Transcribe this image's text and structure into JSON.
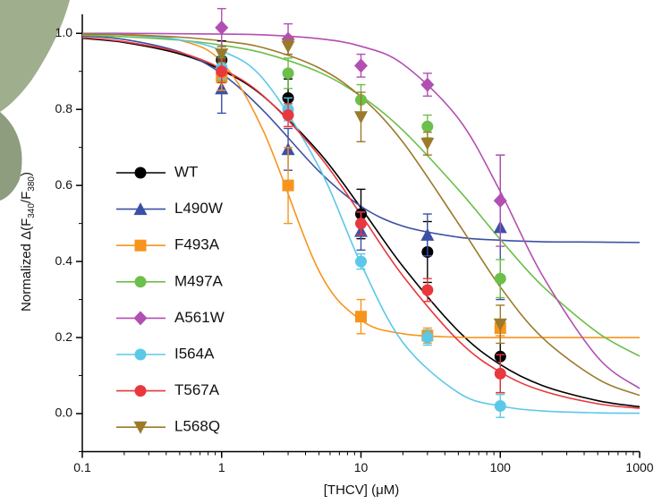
{
  "chart_data": {
    "type": "scatter",
    "xlabel": "[THCV] (μM)",
    "ylabel": [
      "Normalized Δ(F",
      "340",
      "/F",
      "380",
      ")"
    ],
    "xlog": true,
    "xlim": [
      0.1,
      1000
    ],
    "ylim": [
      -0.1,
      1.05
    ],
    "xticks": [
      0.1,
      1,
      10,
      100,
      1000
    ],
    "x_minor_ticks": [
      0.2,
      0.3,
      0.4,
      0.5,
      0.6,
      0.7,
      0.8,
      0.9,
      2,
      3,
      4,
      5,
      6,
      7,
      8,
      9,
      20,
      30,
      40,
      50,
      60,
      70,
      80,
      90,
      200,
      300,
      400,
      500,
      600,
      700,
      800,
      900
    ],
    "yticks": [
      {
        "value": 0,
        "label": "0.0"
      },
      0.2,
      0.4,
      0.6,
      0.8,
      {
        "value": 1,
        "label": "1.0"
      }
    ],
    "y_minor_ticks": [
      -0.1,
      0.1,
      0.3,
      0.5,
      0.7,
      0.9
    ],
    "legend": "left",
    "x": [
      1,
      3,
      10,
      30,
      100
    ],
    "fit_x": [
      0.1,
      0.2,
      0.5,
      1,
      2,
      5,
      10,
      20,
      50,
      100,
      200,
      500,
      1000
    ],
    "series": [
      {
        "name": "WT",
        "color": "#000000",
        "marker": "circle",
        "values": [
          0.93,
          0.83,
          0.525,
          0.425,
          0.15
        ],
        "errors": [
          0.05,
          0.05,
          0.065,
          0.08,
          0.095
        ],
        "fit": [
          0.987,
          0.976,
          0.946,
          0.903,
          0.834,
          0.687,
          0.541,
          0.387,
          0.217,
          0.129,
          0.074,
          0.034,
          0.018
        ]
      },
      {
        "name": "L490W",
        "color": "#3b50a5",
        "marker": "triangle-up",
        "values": [
          0.855,
          0.695,
          0.48,
          0.47,
          0.49
        ],
        "errors": [
          0.065,
          0.055,
          0.05,
          0.055,
          0.19
        ],
        "fit": [
          0.993,
          0.984,
          0.951,
          0.894,
          0.796,
          0.637,
          0.545,
          0.493,
          0.464,
          0.456,
          0.452,
          0.451,
          0.45
        ]
      },
      {
        "name": "F493A",
        "color": "#f7941d",
        "marker": "square",
        "values": [
          0.885,
          0.6,
          0.255,
          0.205,
          0.225
        ],
        "errors": [
          0.035,
          0.1,
          0.045,
          0.02,
          0.02
        ],
        "fit": [
          1.0,
          0.998,
          0.982,
          0.925,
          0.742,
          0.375,
          0.246,
          0.21,
          0.201,
          0.2,
          0.2,
          0.2,
          0.2
        ]
      },
      {
        "name": "M497A",
        "color": "#6cbf4a",
        "marker": "circle",
        "values": [
          0.905,
          0.895,
          0.825,
          0.755,
          0.355
        ],
        "errors": [
          0.03,
          0.04,
          0.04,
          0.03,
          0.05
        ],
        "fit": [
          0.995,
          0.991,
          0.982,
          0.969,
          0.948,
          0.898,
          0.835,
          0.745,
          0.589,
          0.458,
          0.336,
          0.213,
          0.151
        ]
      },
      {
        "name": "A561W",
        "color": "#b24fb2",
        "marker": "diamond",
        "values": [
          1.015,
          0.985,
          0.915,
          0.865,
          0.56
        ],
        "errors": [
          0.05,
          0.04,
          0.03,
          0.03,
          0.12
        ],
        "fit": [
          1.0,
          1.0,
          0.999,
          0.998,
          0.996,
          0.986,
          0.966,
          0.919,
          0.776,
          0.584,
          0.364,
          0.148,
          0.066
        ]
      },
      {
        "name": "I564A",
        "color": "#5bc8e8",
        "marker": "circle",
        "values": [
          0.91,
          0.8,
          0.4,
          0.2,
          0.02
        ],
        "errors": [
          0.03,
          0.03,
          0.02,
          0.02,
          0.03
        ],
        "fit": [
          0.998,
          0.996,
          0.983,
          0.954,
          0.879,
          0.648,
          0.394,
          0.187,
          0.055,
          0.02,
          0.007,
          0.002,
          0.001
        ]
      },
      {
        "name": "T567A",
        "color": "#e8383d",
        "marker": "circle",
        "values": [
          0.9,
          0.785,
          0.5,
          0.325,
          0.105
        ],
        "errors": [
          0.03,
          0.03,
          0.03,
          0.03,
          0.05
        ],
        "fit": [
          0.989,
          0.978,
          0.95,
          0.907,
          0.835,
          0.679,
          0.523,
          0.362,
          0.192,
          0.109,
          0.06,
          0.026,
          0.014
        ]
      },
      {
        "name": "L568Q",
        "color": "#9b7a2a",
        "marker": "triangle-down",
        "values": [
          0.945,
          0.965,
          0.78,
          0.71,
          0.235
        ],
        "errors": [
          0.02,
          0.02,
          0.065,
          0.03,
          0.05
        ],
        "fit": [
          0.998,
          0.996,
          0.99,
          0.98,
          0.962,
          0.909,
          0.833,
          0.714,
          0.5,
          0.333,
          0.2,
          0.091,
          0.048
        ]
      }
    ]
  }
}
